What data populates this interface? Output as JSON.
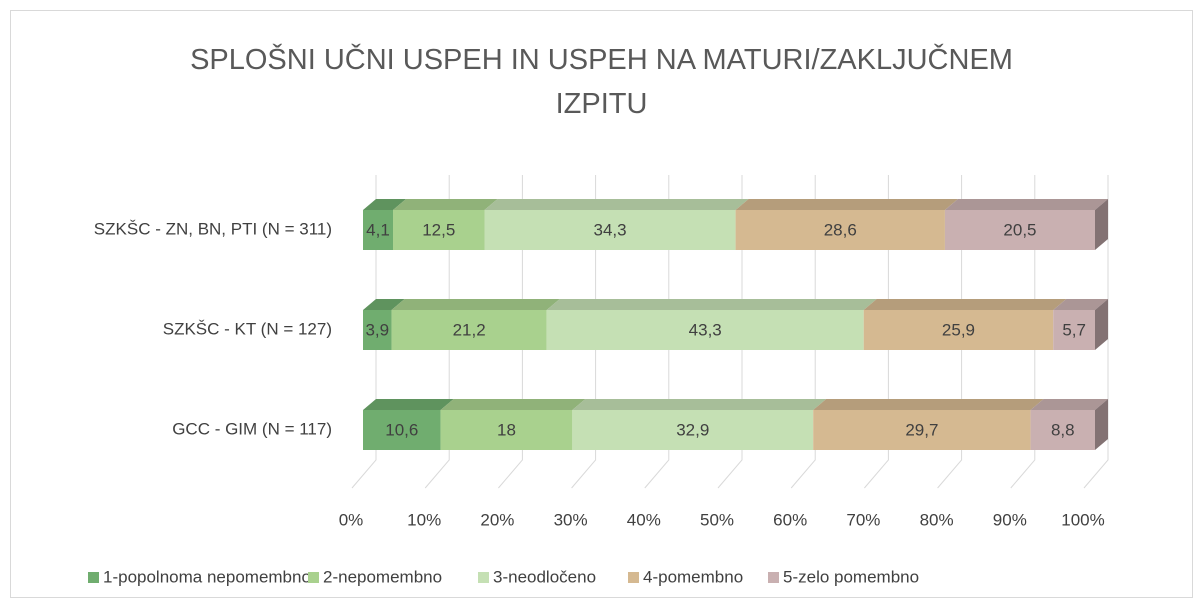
{
  "chart_data": {
    "type": "stacked_bar_horizontal",
    "title": "SPLOŠNI UČNI USPEH IN USPEH NA MATURI/ZAKLJUČNEM IZPITU",
    "categories": [
      "SZKŠC - ZN, BN, PTI (N = 311)",
      "SZKŠC - KT (N = 127)",
      "GCC - GIM (N = 117)"
    ],
    "series": [
      {
        "name": "1-popolnoma nepomembno",
        "color": "#70ad6f",
        "values": [
          4.1,
          3.9,
          10.6
        ],
        "value_labels": [
          "4,1",
          "3,9",
          "10,6"
        ]
      },
      {
        "name": "2-nepomembno",
        "color": "#a9d18e",
        "values": [
          12.5,
          21.2,
          18
        ],
        "value_labels": [
          "12,5",
          "21,2",
          "18"
        ]
      },
      {
        "name": "3-neodločeno",
        "color": "#c5e0b4",
        "values": [
          34.3,
          43.3,
          32.9
        ],
        "value_labels": [
          "34,3",
          "43,3",
          "32,9"
        ]
      },
      {
        "name": "4-pomembno",
        "color": "#d5b991",
        "values": [
          28.6,
          25.9,
          29.7
        ],
        "value_labels": [
          "28,6",
          "25,9",
          "29,7"
        ]
      },
      {
        "name": "5-zelo pomembno",
        "color": "#c9b0b1",
        "values": [
          20.5,
          5.7,
          8.8
        ],
        "value_labels": [
          "20,5",
          "5,7",
          "8,8"
        ]
      }
    ],
    "xlim": [
      0,
      100
    ],
    "xticks": [
      {
        "value": 0,
        "label": "0%"
      },
      {
        "value": 10,
        "label": "10%"
      },
      {
        "value": 20,
        "label": "20%"
      },
      {
        "value": 30,
        "label": "30%"
      },
      {
        "value": 40,
        "label": "40%"
      },
      {
        "value": 50,
        "label": "50%"
      },
      {
        "value": 60,
        "label": "60%"
      },
      {
        "value": 70,
        "label": "70%"
      },
      {
        "value": 80,
        "label": "80%"
      },
      {
        "value": 90,
        "label": "90%"
      },
      {
        "value": 100,
        "label": "100%"
      }
    ],
    "grid": true,
    "legend": "bottom"
  }
}
